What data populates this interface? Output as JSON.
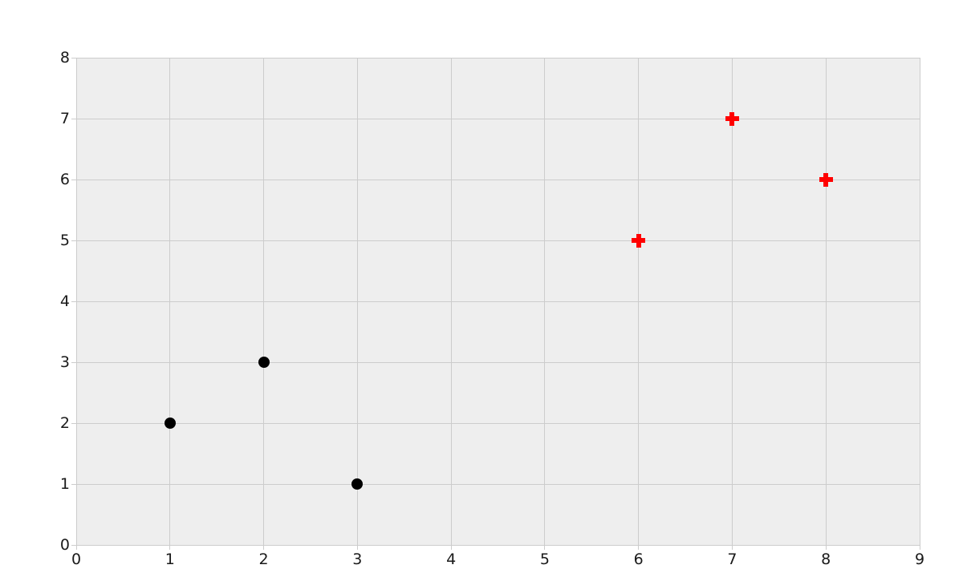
{
  "chart_data": {
    "type": "scatter",
    "title": "",
    "xlabel": "",
    "ylabel": "",
    "xlim": [
      0,
      9
    ],
    "ylim": [
      0,
      8
    ],
    "xticks": [
      0,
      1,
      2,
      3,
      4,
      5,
      6,
      7,
      8,
      9
    ],
    "yticks": [
      0,
      1,
      2,
      3,
      4,
      5,
      6,
      7,
      8
    ],
    "grid": true,
    "legend": "none",
    "plot_background_color": "#eeeeee",
    "gridline_color": "#cccccc",
    "tick_label_color": "#1a1a1a",
    "series": [
      {
        "name": "black-circle-series",
        "marker": "circle",
        "color": "#000000",
        "points": [
          [
            1,
            2
          ],
          [
            2,
            3
          ],
          [
            3,
            1
          ]
        ]
      },
      {
        "name": "red-plus-series",
        "marker": "plus",
        "color": "#ff0000",
        "points": [
          [
            6,
            5
          ],
          [
            7,
            7
          ],
          [
            8,
            6
          ]
        ]
      }
    ]
  }
}
